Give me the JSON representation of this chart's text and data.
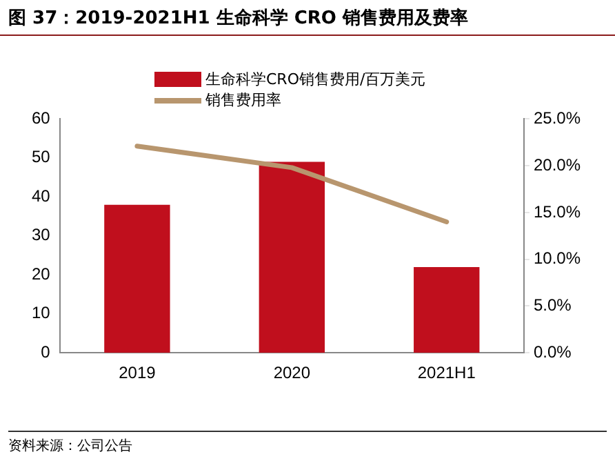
{
  "chart_data": {
    "type": "bar",
    "title": "图 37：2019-2021H1 生命科学 CRO 销售费用及费率",
    "categories": [
      "2019",
      "2020",
      "2021H1"
    ],
    "series": [
      {
        "name": "生命科学CRO销售费用/百万美元",
        "color": "#c00f1d",
        "values": [
          38,
          49,
          22
        ]
      },
      {
        "name": "销售费用率",
        "type": "line",
        "axis": "y2",
        "color": "#b8966e",
        "values": [
          22.1,
          19.8,
          14.0
        ]
      }
    ],
    "ylim": [
      0,
      60
    ],
    "yticks": [
      0,
      10,
      20,
      30,
      40,
      50,
      60
    ],
    "y2lim": [
      0,
      25
    ],
    "y2ticks": [
      {
        "value": 0,
        "label": "0.0%"
      },
      {
        "value": 5,
        "label": "5.0%"
      },
      {
        "value": 10,
        "label": "10.0%"
      },
      {
        "value": 15,
        "label": "15.0%"
      },
      {
        "value": 20,
        "label": "20.0%"
      },
      {
        "value": 25,
        "label": "25.0%"
      }
    ],
    "legend": "top",
    "grid": false,
    "marker": "none",
    "annotations": [
      "资料来源：公司公告"
    ]
  }
}
